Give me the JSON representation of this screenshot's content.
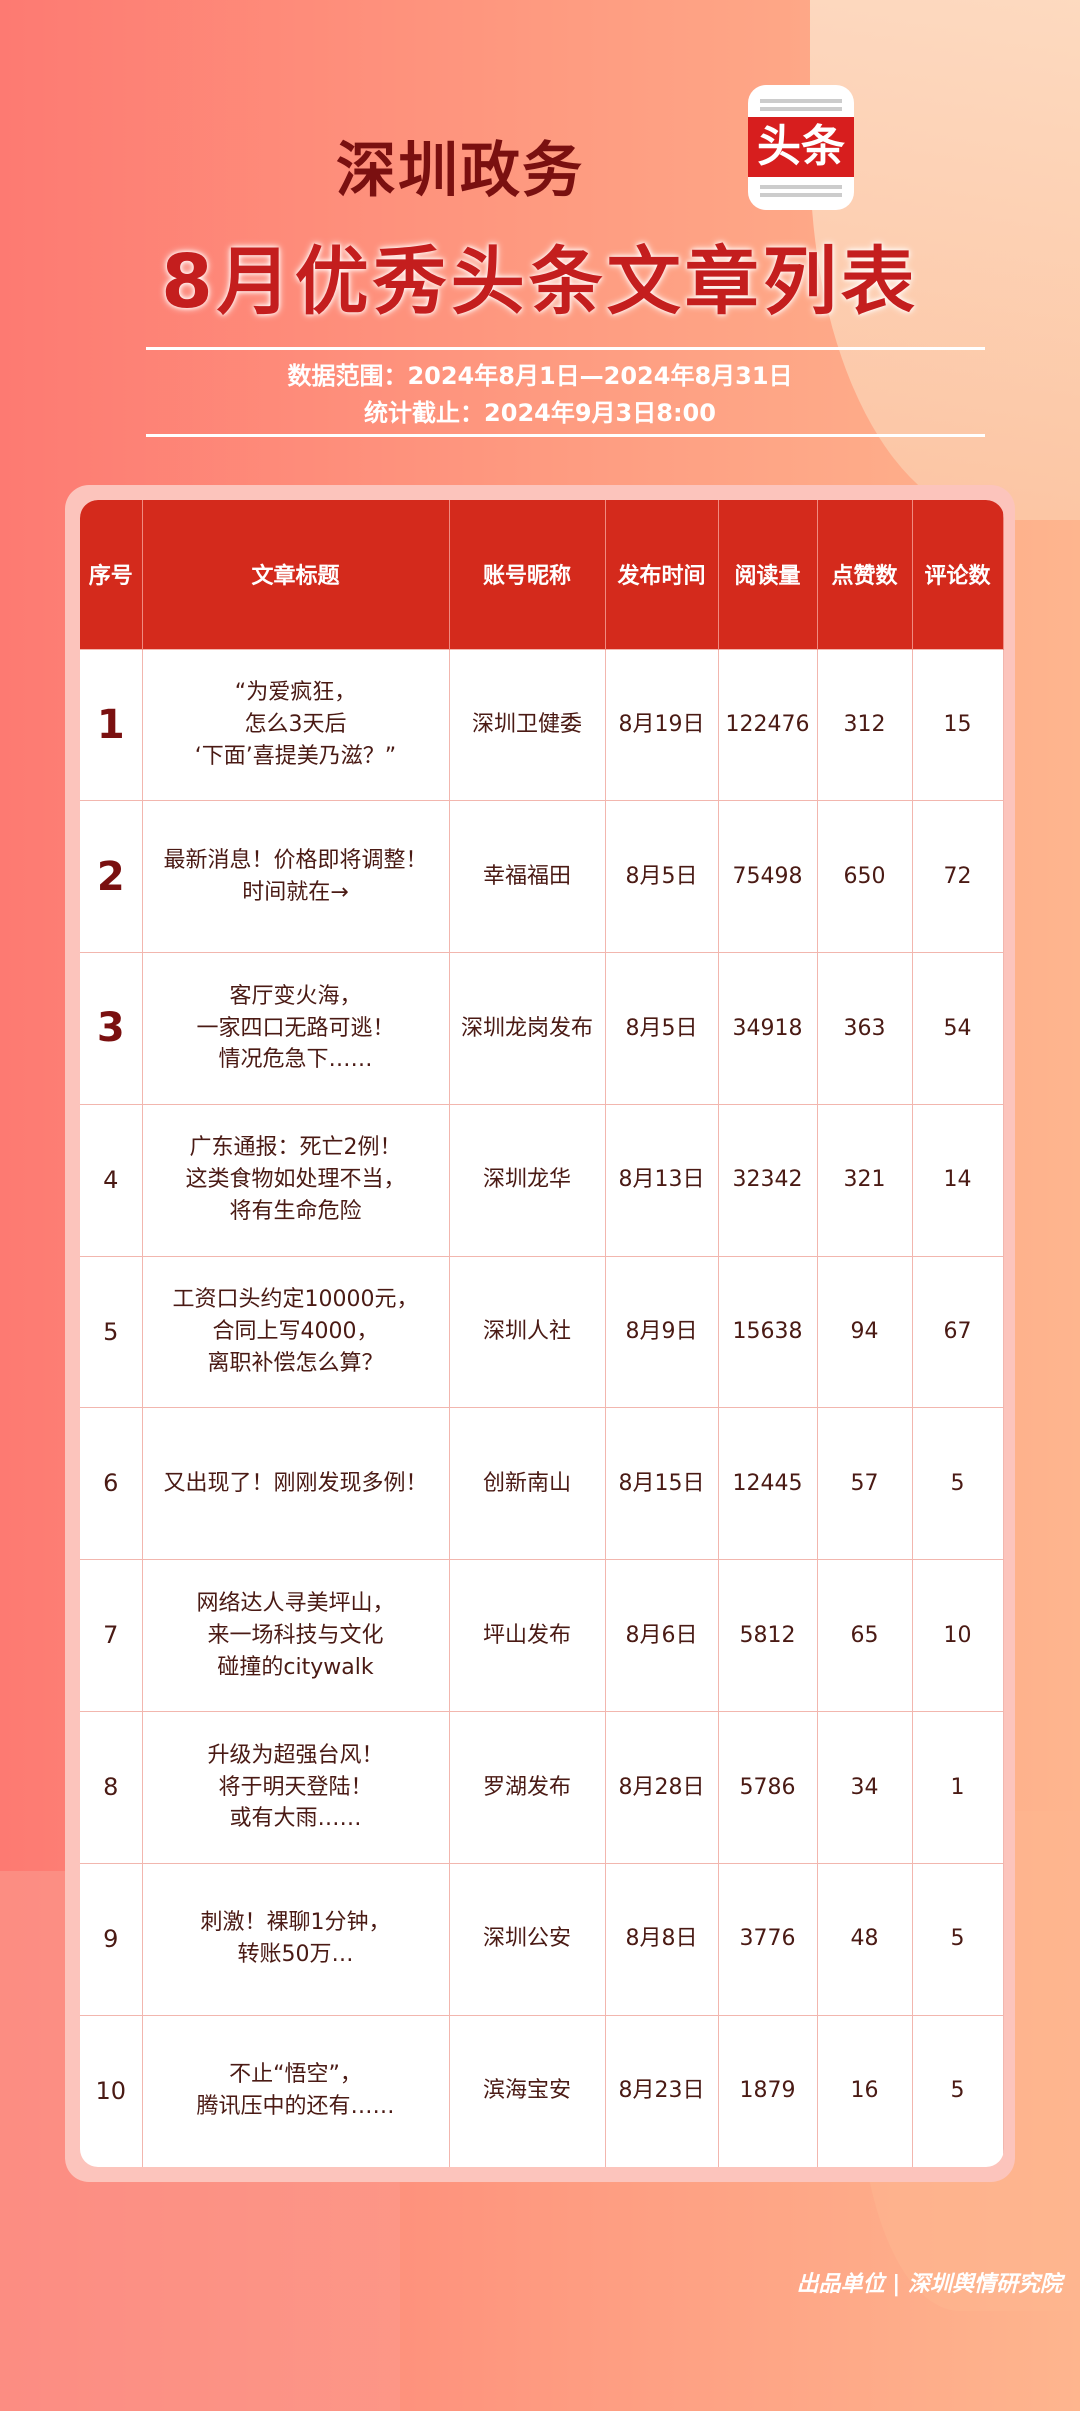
{
  "header": {
    "brand": "深圳政务",
    "logo_text": "头条",
    "title": "8月优秀头条文章列表",
    "range": "数据范围：2024年8月1日—2024年8月31日",
    "cutoff": "统计截止：2024年9月3日8:00"
  },
  "colors": {
    "header_bg": "#d42a1c",
    "title": "#c41e1e",
    "brand": "#7a1010"
  },
  "table": {
    "columns": [
      "序号",
      "文章标题",
      "账号昵称",
      "发布时间",
      "阅读量",
      "点赞数",
      "评论数"
    ],
    "rows": [
      {
        "rank": "1",
        "title": "“为爱疯狂，\n怎么3天后\n‘下面’喜提美乃滋？”",
        "account": "深圳卫健委",
        "date": "8月19日",
        "reads": "122476",
        "likes": "312",
        "comments": "15"
      },
      {
        "rank": "2",
        "title": "最新消息！价格即将调整！\n时间就在→",
        "account": "幸福福田",
        "date": "8月5日",
        "reads": "75498",
        "likes": "650",
        "comments": "72"
      },
      {
        "rank": "3",
        "title": "客厅变火海，\n一家四口无路可逃！\n情况危急下……",
        "account": "深圳龙岗发布",
        "date": "8月5日",
        "reads": "34918",
        "likes": "363",
        "comments": "54"
      },
      {
        "rank": "4",
        "title": "广东通报：死亡2例！\n这类食物如处理不当，\n将有生命危险",
        "account": "深圳龙华",
        "date": "8月13日",
        "reads": "32342",
        "likes": "321",
        "comments": "14"
      },
      {
        "rank": "5",
        "title": "工资口头约定10000元，\n合同上写4000，\n离职补偿怎么算？",
        "account": "深圳人社",
        "date": "8月9日",
        "reads": "15638",
        "likes": "94",
        "comments": "67"
      },
      {
        "rank": "6",
        "title": "又出现了！刚刚发现多例！",
        "account": "创新南山",
        "date": "8月15日",
        "reads": "12445",
        "likes": "57",
        "comments": "5"
      },
      {
        "rank": "7",
        "title": "网络达人寻美坪山，\n来一场科技与文化\n碰撞的citywalk",
        "account": "坪山发布",
        "date": "8月6日",
        "reads": "5812",
        "likes": "65",
        "comments": "10"
      },
      {
        "rank": "8",
        "title": "升级为超强台风！\n将于明天登陆！\n或有大雨……",
        "account": "罗湖发布",
        "date": "8月28日",
        "reads": "5786",
        "likes": "34",
        "comments": "1"
      },
      {
        "rank": "9",
        "title": "刺激！裸聊1分钟，\n转账50万…",
        "account": "深圳公安",
        "date": "8月8日",
        "reads": "3776",
        "likes": "48",
        "comments": "5"
      },
      {
        "rank": "10",
        "title": "不止“悟空”，\n腾讯压中的还有……",
        "account": "滨海宝安",
        "date": "8月23日",
        "reads": "1879",
        "likes": "16",
        "comments": "5"
      }
    ]
  },
  "footer": {
    "credit": "出品单位 | 深圳舆情研究院"
  }
}
